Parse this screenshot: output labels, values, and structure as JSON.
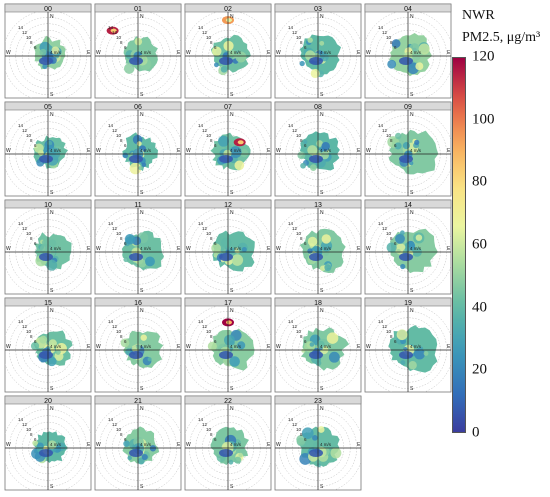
{
  "chart_data": {
    "type": "polar-bivariate-grid",
    "panel_labels": [
      "00",
      "01",
      "02",
      "03",
      "04",
      "05",
      "06",
      "07",
      "08",
      "09",
      "10",
      "11",
      "12",
      "13",
      "14",
      "15",
      "16",
      "17",
      "18",
      "19",
      "20",
      "21",
      "22",
      "23"
    ],
    "direction_labels": [
      "N",
      "E",
      "S",
      "W"
    ],
    "ring_labels": [
      "14",
      "12",
      "10",
      "8",
      "6",
      "4 m/s"
    ],
    "colorbar": {
      "title_line1": "NWR",
      "title_line2": "PM2.5, μg/m³",
      "ticks": [
        "120",
        "100",
        "80",
        "60",
        "40",
        "20",
        "0"
      ],
      "range": [
        0,
        120
      ]
    },
    "pollution_hotspots": [
      {
        "panel": "01",
        "value": 115,
        "direction": "NW",
        "speed": 13
      },
      {
        "panel": "02",
        "value": 95,
        "direction": "N",
        "speed": 13
      },
      {
        "panel": "07",
        "value": 115,
        "direction": "NE",
        "speed": 6
      },
      {
        "panel": "17",
        "value": 120,
        "direction": "N",
        "speed": 10
      }
    ]
  },
  "colors": {
    "low": "#3b3d9e",
    "mid": "#f4f5a0",
    "high": "#9e0142"
  }
}
